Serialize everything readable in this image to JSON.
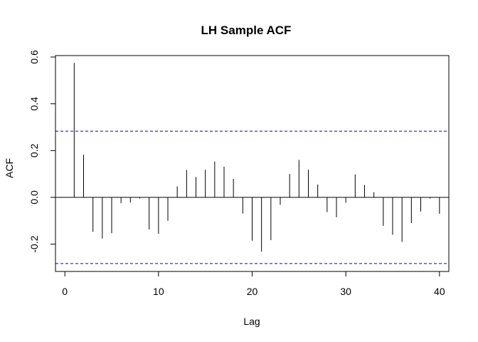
{
  "chart_data": {
    "type": "bar",
    "title": "LH Sample ACF",
    "xlabel": "Lag",
    "ylabel": "ACF",
    "xlim": [
      -1,
      41
    ],
    "ylim": [
      -0.28,
      0.6
    ],
    "x_ticks": [
      0,
      10,
      20,
      30,
      40
    ],
    "y_ticks": [
      -0.2,
      0.0,
      0.2,
      0.4,
      0.6
    ],
    "y_tick_labels": [
      "-0.2",
      "0.0",
      "0.2",
      "0.4",
      "0.6"
    ],
    "confidence_limits": [
      0.283,
      -0.283
    ],
    "colors": {
      "bars": "#000000",
      "confidence": "#0000cc",
      "zero_line": "#000000"
    },
    "lags": [
      1,
      2,
      3,
      4,
      5,
      6,
      7,
      8,
      9,
      10,
      11,
      12,
      13,
      14,
      15,
      16,
      17,
      18,
      19,
      20,
      21,
      22,
      23,
      24,
      25,
      26,
      27,
      28,
      29,
      30,
      31,
      32,
      33,
      34,
      35,
      36,
      37,
      38,
      39,
      40
    ],
    "values": [
      0.575,
      0.182,
      -0.147,
      -0.176,
      -0.153,
      -0.025,
      -0.022,
      -0.005,
      -0.137,
      -0.156,
      -0.1,
      0.047,
      0.117,
      0.087,
      0.118,
      0.153,
      0.131,
      0.079,
      -0.069,
      -0.185,
      -0.232,
      -0.183,
      -0.032,
      0.1,
      0.16,
      0.118,
      0.055,
      -0.063,
      -0.085,
      -0.023,
      0.098,
      0.053,
      0.022,
      -0.122,
      -0.16,
      -0.19,
      -0.11,
      -0.061,
      -0.005,
      -0.07
    ]
  }
}
